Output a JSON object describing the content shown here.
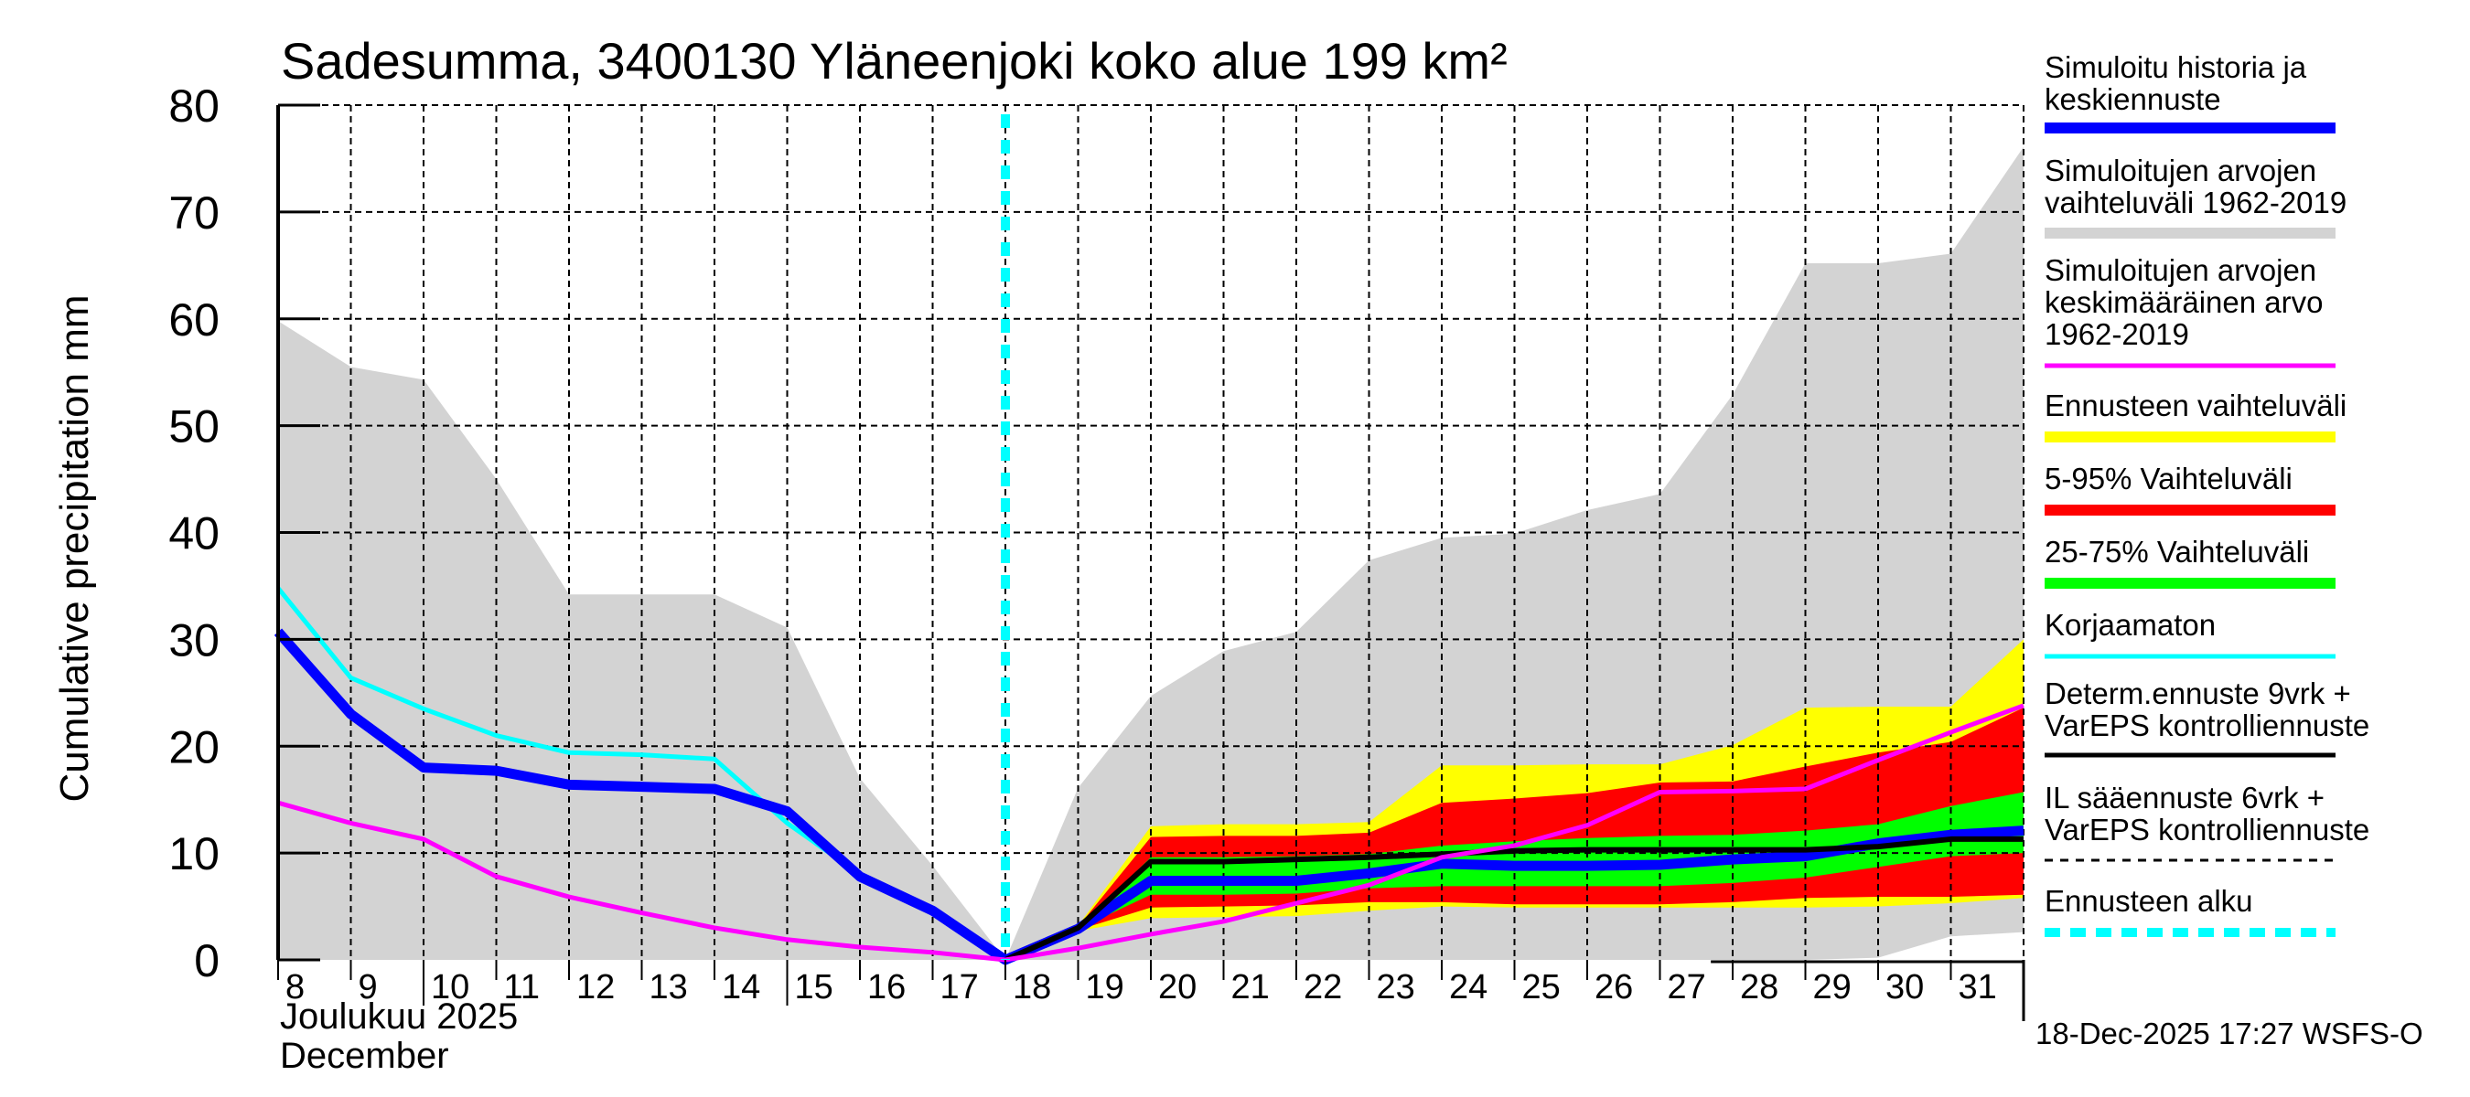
{
  "chart_data": {
    "type": "area",
    "title": "Sadesumma, 3400130 Yläneenjoki koko alue 199 km²",
    "ylabel": "Cumulative precipitation   mm",
    "xlabel_lines": [
      "Joulukuu  2025",
      "December"
    ],
    "ylim": [
      0,
      80
    ],
    "yticks": [
      0,
      10,
      20,
      30,
      40,
      50,
      60,
      70,
      80
    ],
    "grid": true,
    "x": [
      8,
      9,
      10,
      11,
      12,
      13,
      14,
      15,
      16,
      17,
      18,
      19,
      20,
      21,
      22,
      23,
      24,
      25,
      26,
      27,
      28,
      29,
      30,
      31,
      32
    ],
    "x_tick_labels": [
      "8",
      "9",
      "10",
      "11",
      "12",
      "13",
      "14",
      "15",
      "16",
      "17",
      "18",
      "19",
      "20",
      "21",
      "22",
      "23",
      "24",
      "25",
      "26",
      "27",
      "28",
      "29",
      "30",
      "31"
    ],
    "xlim": [
      8,
      32
    ],
    "forecast_start_day": 18,
    "bands": [
      {
        "name": "Simuloitujen arvojen vaihteluväli 1962-2019",
        "color": "#d3d3d3",
        "x": [
          8,
          9,
          10,
          11,
          12,
          13,
          14,
          15,
          16,
          17,
          18,
          19,
          20,
          21,
          22,
          23,
          24,
          25,
          26,
          27,
          28,
          29,
          30,
          31,
          32
        ],
        "upper": [
          59.8,
          55.5,
          54.3,
          45.0,
          34.2,
          34.2,
          34.2,
          31.1,
          17.0,
          8.8,
          0.0,
          16.1,
          24.7,
          28.9,
          30.7,
          37.4,
          39.5,
          39.9,
          42.1,
          43.6,
          52.9,
          65.2,
          65.2,
          66.1,
          76.1
        ],
        "lower": [
          0,
          0,
          0,
          0,
          0,
          0,
          0,
          0,
          0,
          0,
          0,
          0,
          0,
          0,
          0,
          0,
          0,
          0,
          0,
          0,
          0,
          0,
          0.2,
          2.2,
          2.6
        ]
      },
      {
        "name": "Ennusteen vaihteluväli",
        "color": "#ffff00",
        "x": [
          18,
          19,
          20,
          21,
          22,
          23,
          24,
          25,
          26,
          27,
          28,
          29,
          30,
          31,
          32
        ],
        "upper": [
          0,
          3.2,
          12.5,
          12.7,
          12.7,
          12.9,
          18.2,
          18.2,
          18.3,
          18.3,
          20.1,
          23.6,
          23.7,
          23.7,
          30.0
        ],
        "lower": [
          0,
          2.7,
          3.9,
          4.0,
          4.1,
          4.6,
          5.0,
          4.9,
          4.9,
          4.9,
          4.9,
          4.9,
          5.0,
          5.3,
          5.8
        ]
      },
      {
        "name": "5-95% Vaihteluväli",
        "color": "#ff0000",
        "x": [
          18,
          19,
          20,
          21,
          22,
          23,
          24,
          25,
          26,
          27,
          28,
          29,
          30,
          31,
          32
        ],
        "upper": [
          0,
          3.1,
          11.5,
          11.6,
          11.6,
          11.9,
          14.7,
          15.1,
          15.6,
          16.6,
          16.7,
          18.1,
          19.4,
          20.4,
          23.6
        ],
        "lower": [
          0,
          2.8,
          4.9,
          5.0,
          5.1,
          5.4,
          5.4,
          5.2,
          5.2,
          5.2,
          5.4,
          5.8,
          5.9,
          5.9,
          6.1
        ]
      },
      {
        "name": "25-75% Vaihteluväli",
        "color": "#00ff00",
        "x": [
          18,
          19,
          20,
          21,
          22,
          23,
          24,
          25,
          26,
          27,
          28,
          29,
          30,
          31,
          32
        ],
        "upper": [
          0,
          3.0,
          9.6,
          9.6,
          9.7,
          9.9,
          10.7,
          11.1,
          11.4,
          11.6,
          11.7,
          12.1,
          12.7,
          14.4,
          15.7
        ],
        "lower": [
          0,
          2.9,
          6.1,
          6.1,
          6.2,
          6.7,
          6.9,
          6.9,
          6.9,
          6.9,
          7.2,
          7.7,
          8.7,
          9.7,
          10.0
        ]
      }
    ],
    "series": [
      {
        "name": "Simuloitujen arvojen keskimääräinen arvo 1962-2019",
        "color": "#ff00ff",
        "style": "solid",
        "x": [
          8,
          9,
          10,
          11,
          12,
          13,
          14,
          15,
          16,
          17,
          18,
          19,
          20,
          21,
          22,
          23,
          24,
          25,
          26,
          27,
          28,
          29,
          30,
          31,
          32
        ],
        "values": [
          14.7,
          12.8,
          11.3,
          7.8,
          5.9,
          4.4,
          3.0,
          1.9,
          1.2,
          0.7,
          0.0,
          1.1,
          2.4,
          3.6,
          5.3,
          7.0,
          9.6,
          10.7,
          12.6,
          15.7,
          15.8,
          16.0,
          18.7,
          21.3,
          23.8
        ]
      },
      {
        "name": "Korjaamaton",
        "color": "#00ffff",
        "style": "solid",
        "x": [
          8,
          9,
          10,
          11,
          12,
          13,
          14,
          15,
          16
        ],
        "values": [
          34.8,
          26.4,
          23.5,
          21.0,
          19.4,
          19.2,
          18.8,
          12.8,
          8.0
        ]
      },
      {
        "name": "Simuloitu historia ja keskiennuste",
        "color": "#0000ff",
        "style": "thick",
        "x": [
          8,
          9,
          10,
          11,
          12,
          13,
          14,
          15,
          16,
          17,
          18,
          19,
          20,
          21,
          22,
          23,
          24,
          25,
          26,
          27,
          28,
          29,
          30,
          31,
          32
        ],
        "values": [
          30.7,
          23.0,
          18.0,
          17.7,
          16.4,
          16.2,
          16.0,
          13.9,
          7.8,
          4.6,
          0.0,
          2.9,
          7.4,
          7.4,
          7.4,
          8.1,
          9.0,
          8.8,
          8.8,
          8.9,
          9.4,
          9.7,
          10.9,
          11.7,
          12.1
        ]
      },
      {
        "name": "Determ.ennuste 9vrk + VarEPS kontrolliennuste",
        "color": "#000000",
        "style": "solid",
        "x": [
          18,
          19,
          20,
          21,
          22,
          23,
          24,
          25,
          26,
          27,
          28,
          29,
          30,
          31,
          32
        ],
        "values": [
          0.0,
          3.0,
          9.2,
          9.2,
          9.4,
          9.6,
          9.9,
          10.2,
          10.3,
          10.3,
          10.3,
          10.3,
          10.6,
          11.3,
          11.3
        ]
      }
    ],
    "legend_placement": "right",
    "legend": [
      {
        "lines": [
          "Simuloitu historia ja",
          "keskiennuste"
        ],
        "color": "#0000ff",
        "style": "thick"
      },
      {
        "lines": [
          "Simuloitujen arvojen",
          "vaihteluväli 1962-2019"
        ],
        "color": "#d3d3d3",
        "style": "thick"
      },
      {
        "lines": [
          "Simuloitujen arvojen",
          "keskimääräinen arvo",
          "   1962-2019"
        ],
        "color": "#ff00ff",
        "style": "medium"
      },
      {
        "lines": [
          "Ennusteen vaihteluväli"
        ],
        "color": "#ffff00",
        "style": "thick"
      },
      {
        "lines": [
          "5-95% Vaihteluväli"
        ],
        "color": "#ff0000",
        "style": "thick"
      },
      {
        "lines": [
          "25-75% Vaihteluväli"
        ],
        "color": "#00ff00",
        "style": "thick"
      },
      {
        "lines": [
          "Korjaamaton"
        ],
        "color": "#00ffff",
        "style": "medium"
      },
      {
        "lines": [
          "Determ.ennuste 9vrk +",
          "VarEPS kontrolliennuste"
        ],
        "color": "#000000",
        "style": "medium"
      },
      {
        "lines": [
          "IL sääennuste 6vrk  +",
          "  VarEPS kontrolliennuste"
        ],
        "color": "#000000",
        "style": "dashed"
      },
      {
        "lines": [
          "Ennusteen alku"
        ],
        "color": "#00ffff",
        "style": "dotted-thick"
      }
    ],
    "footer": "18-Dec-2025 17:27 WSFS-O"
  }
}
